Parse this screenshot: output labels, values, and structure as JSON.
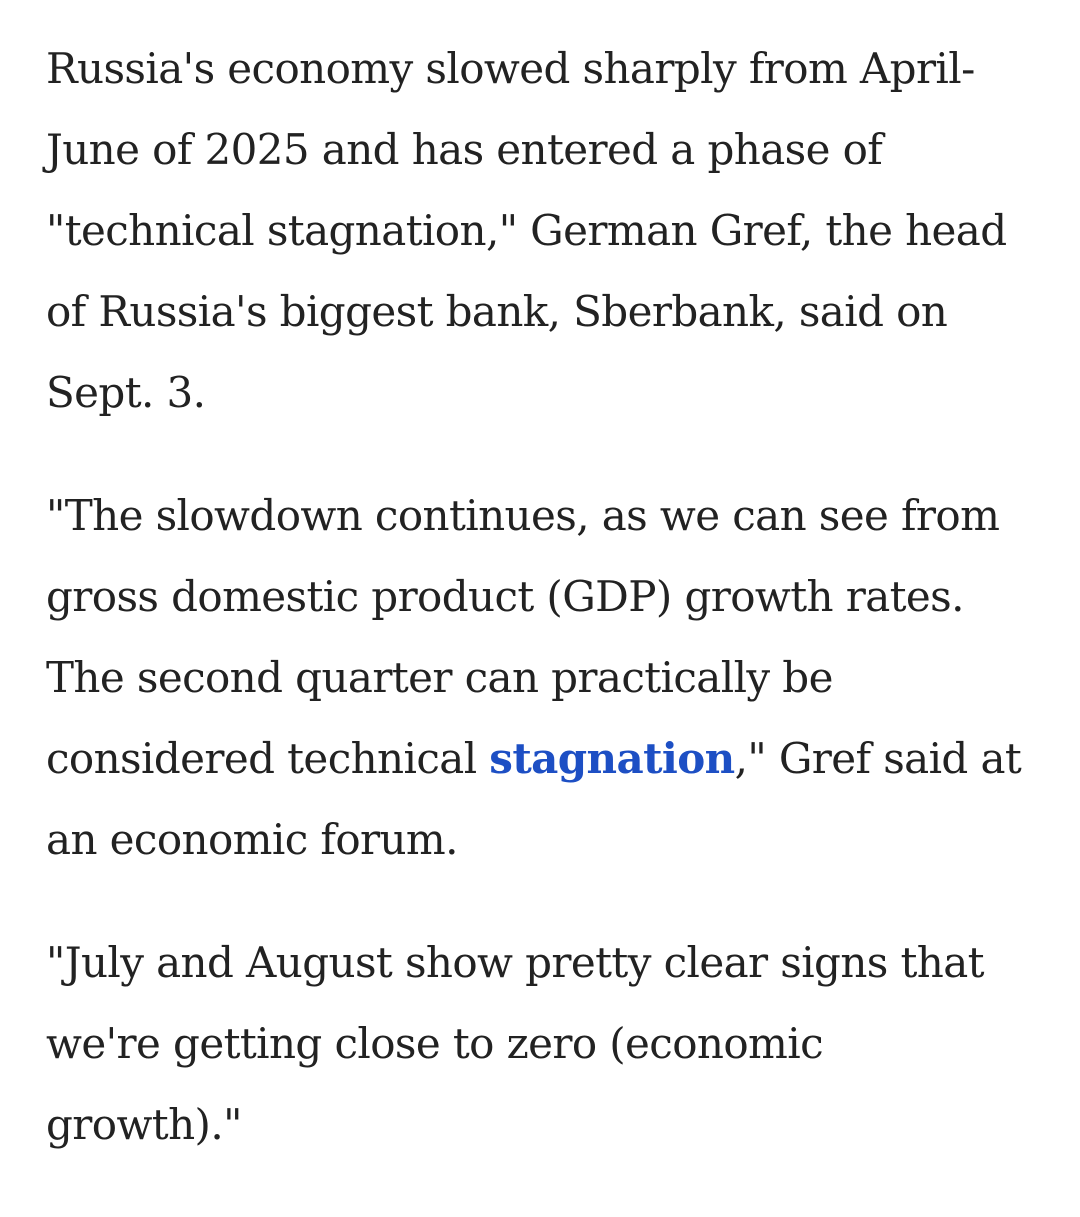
{
  "article": {
    "paragraphs": [
      {
        "lines": [
          "Russia's economy slowed sharply from April-",
          "June of 2025 and has entered a phase of",
          "\"technical stagnation,\" German Gref, the head",
          "of Russia's biggest bank, Sberbank, said on",
          "Sept. 3."
        ]
      },
      {
        "lines": [
          "\"The slowdown continues, as we can see from",
          "gross domestic product (GDP) growth rates.",
          "The second quarter can practically be"
        ],
        "line4_before": "considered technical ",
        "line4_link": "stagnation",
        "line4_after": ",\" Gref said at",
        "line5": "an economic forum."
      },
      {
        "lines": [
          "\"July and August show pretty clear signs that",
          "we're getting close to zero (economic",
          "growth).\""
        ]
      }
    ],
    "colors": {
      "text": "#222222",
      "link": "#1d4fc4",
      "background": "#ffffff"
    }
  }
}
